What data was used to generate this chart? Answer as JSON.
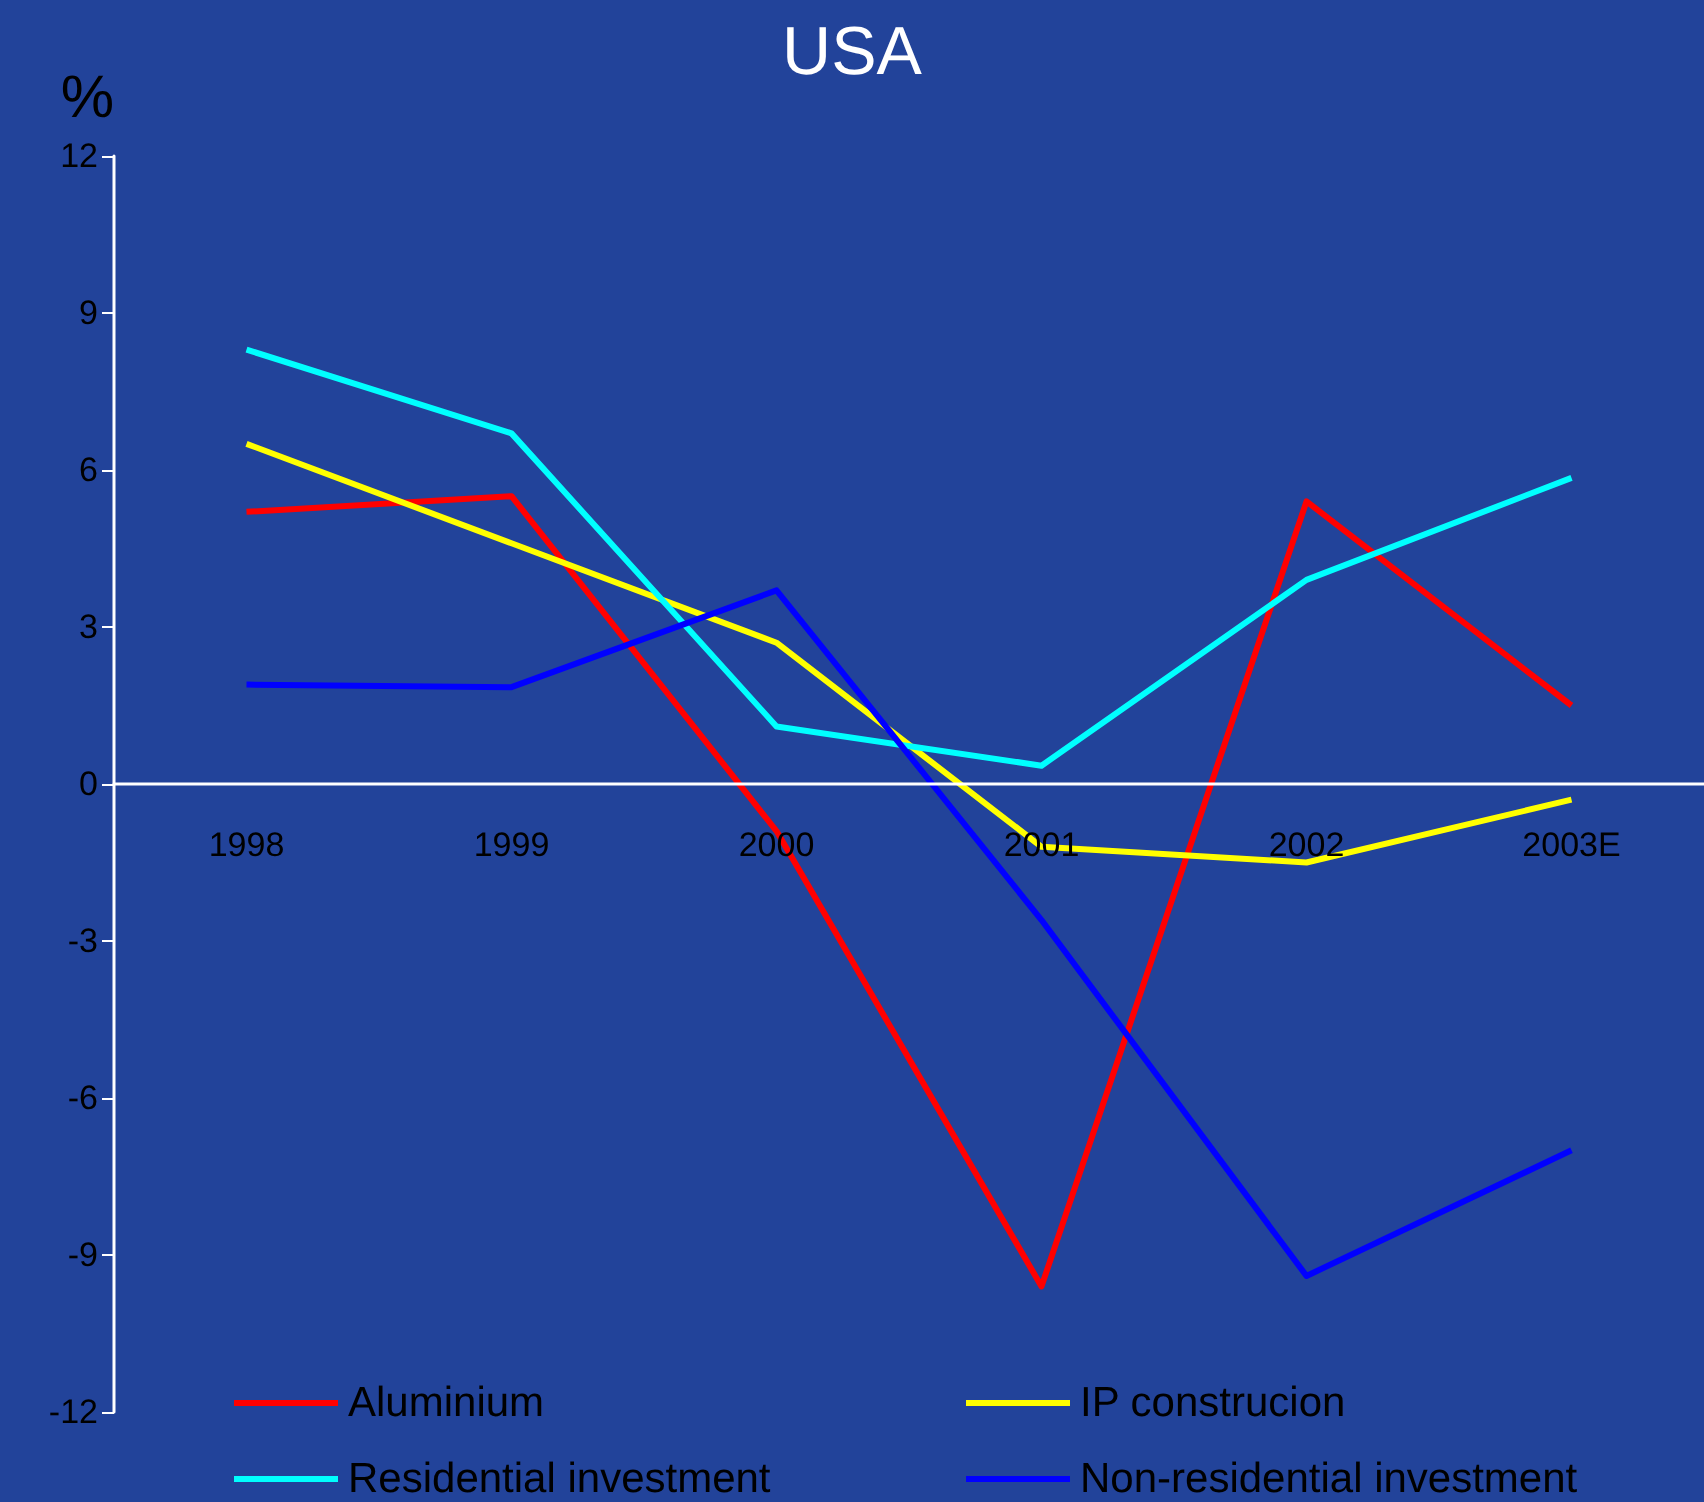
{
  "chart_data": {
    "type": "line",
    "title": "USA",
    "ylabel": "%",
    "categories": [
      "1998",
      "1999",
      "2000",
      "2001",
      "2002",
      "2003E"
    ],
    "series": [
      {
        "name": "Aluminium",
        "color": "#ff0000",
        "values": [
          5.2,
          5.5,
          -0.9,
          -9.6,
          5.4,
          1.5
        ]
      },
      {
        "name": "IP construcion",
        "color": "#ffff00",
        "values": [
          6.5,
          4.6,
          2.7,
          -1.2,
          -1.5,
          -0.3
        ]
      },
      {
        "name": "Residential investment",
        "color": "#00ffff",
        "values": [
          8.3,
          6.7,
          1.1,
          0.35,
          3.9,
          5.85
        ]
      },
      {
        "name": "Non-residential investment",
        "color": "#0000ff",
        "values": [
          1.9,
          1.85,
          3.7,
          -2.6,
          -9.4,
          -7.0
        ]
      }
    ],
    "ylim": [
      -12,
      12
    ],
    "yticks": [
      -12,
      -9,
      -6,
      -3,
      0,
      3,
      6,
      9,
      12
    ],
    "grid": false,
    "legend": "bottom",
    "marker": "none",
    "line_style": "solid"
  }
}
